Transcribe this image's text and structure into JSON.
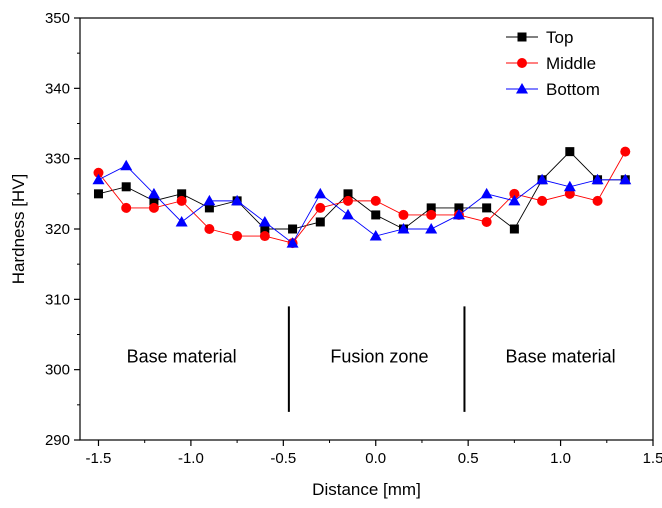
{
  "chart_data": {
    "type": "line",
    "xlabel": "Distance [mm]",
    "ylabel": "Hardness [HV]",
    "xlim": [
      -1.6,
      1.5
    ],
    "ylim": [
      290,
      350
    ],
    "xticks": [
      -1.5,
      -1.0,
      -0.5,
      0.0,
      0.5,
      1.0,
      1.5
    ],
    "xtick_labels": [
      "-1.5",
      "-1.0",
      "-0.5",
      "0.0",
      "0.5",
      "1.0",
      "1.5"
    ],
    "yticks": [
      290,
      300,
      310,
      320,
      330,
      340,
      350
    ],
    "ytick_labels": [
      "290",
      "300",
      "310",
      "320",
      "330",
      "340",
      "350"
    ],
    "legend_position": "top-right",
    "grid": false,
    "x": [
      -1.5,
      -1.35,
      -1.2,
      -1.05,
      -0.9,
      -0.75,
      -0.6,
      -0.45,
      -0.3,
      -0.15,
      0.0,
      0.15,
      0.3,
      0.45,
      0.6,
      0.75,
      0.9,
      1.05,
      1.2,
      1.35
    ],
    "series": [
      {
        "name": "Top",
        "color": "#000000",
        "marker": "square",
        "values": [
          325,
          326,
          324,
          325,
          323,
          324,
          320,
          320,
          321,
          325,
          322,
          320,
          323,
          323,
          323,
          320,
          327,
          331,
          327,
          327
        ]
      },
      {
        "name": "Middle",
        "color": "#ff0000",
        "marker": "circle",
        "values": [
          328,
          323,
          323,
          324,
          320,
          319,
          319,
          318,
          323,
          324,
          324,
          322,
          322,
          322,
          321,
          325,
          324,
          325,
          324,
          331
        ]
      },
      {
        "name": "Bottom",
        "color": "#0000ff",
        "marker": "triangle",
        "values": [
          327,
          329,
          325,
          321,
          324,
          324,
          321,
          318,
          325,
          322,
          319,
          320,
          320,
          322,
          325,
          324,
          327,
          326,
          327,
          327
        ]
      }
    ],
    "vertical_lines": [
      {
        "x": -0.47,
        "y_from": 294,
        "y_to": 309
      },
      {
        "x": 0.48,
        "y_from": 294,
        "y_to": 309
      }
    ],
    "annotations": [
      {
        "text": "Base material",
        "x": -1.05,
        "y": 301
      },
      {
        "text": "Fusion zone",
        "x": 0.02,
        "y": 301
      },
      {
        "text": "Base material",
        "x": 1.0,
        "y": 301
      }
    ]
  }
}
